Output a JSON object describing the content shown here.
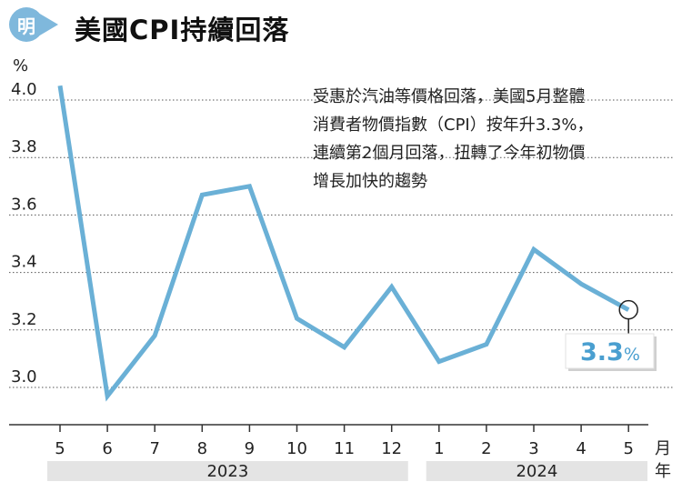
{
  "header": {
    "badge_glyph": "明",
    "title": "美國CPI持續回落"
  },
  "annotation": {
    "lines": [
      "受惠於汽油等價格回落，美國5月整體",
      "消費者物價指數（CPI）按年升3.3%，",
      "連續第2個月回落，扭轉了今年初物價",
      "增長加快的趨勢"
    ]
  },
  "callout": {
    "value": "3.3",
    "unit": "%"
  },
  "colors": {
    "line": "#6ab0d6",
    "badge": "#7fb8dc",
    "callout_text": "#4a9fd0",
    "year_band": "#e4e4e4"
  },
  "chart_data": {
    "type": "line",
    "title": "美國CPI持續回落",
    "y_unit": "%",
    "ylim": [
      2.95,
      4.1
    ],
    "y_ticks": [
      3.0,
      3.2,
      3.4,
      3.6,
      3.8,
      4.0
    ],
    "y_tick_labels": [
      "3.0",
      "3.2",
      "3.4",
      "3.6",
      "3.8",
      "4.0"
    ],
    "grid": true,
    "x_unit": "月",
    "categories": [
      "5",
      "6",
      "7",
      "8",
      "9",
      "10",
      "11",
      "12",
      "1",
      "2",
      "3",
      "4",
      "5"
    ],
    "year_unit": "年",
    "years": [
      {
        "label": "2023",
        "start_index": 0,
        "end_index": 7
      },
      {
        "label": "2024",
        "start_index": 8,
        "end_index": 12
      }
    ],
    "series": [
      {
        "values": [
          4.05,
          2.97,
          3.18,
          3.67,
          3.7,
          3.24,
          3.14,
          3.35,
          3.09,
          3.15,
          3.48,
          3.36,
          3.27
        ]
      }
    ],
    "highlight": {
      "index": 12,
      "label": "3.3%"
    }
  }
}
